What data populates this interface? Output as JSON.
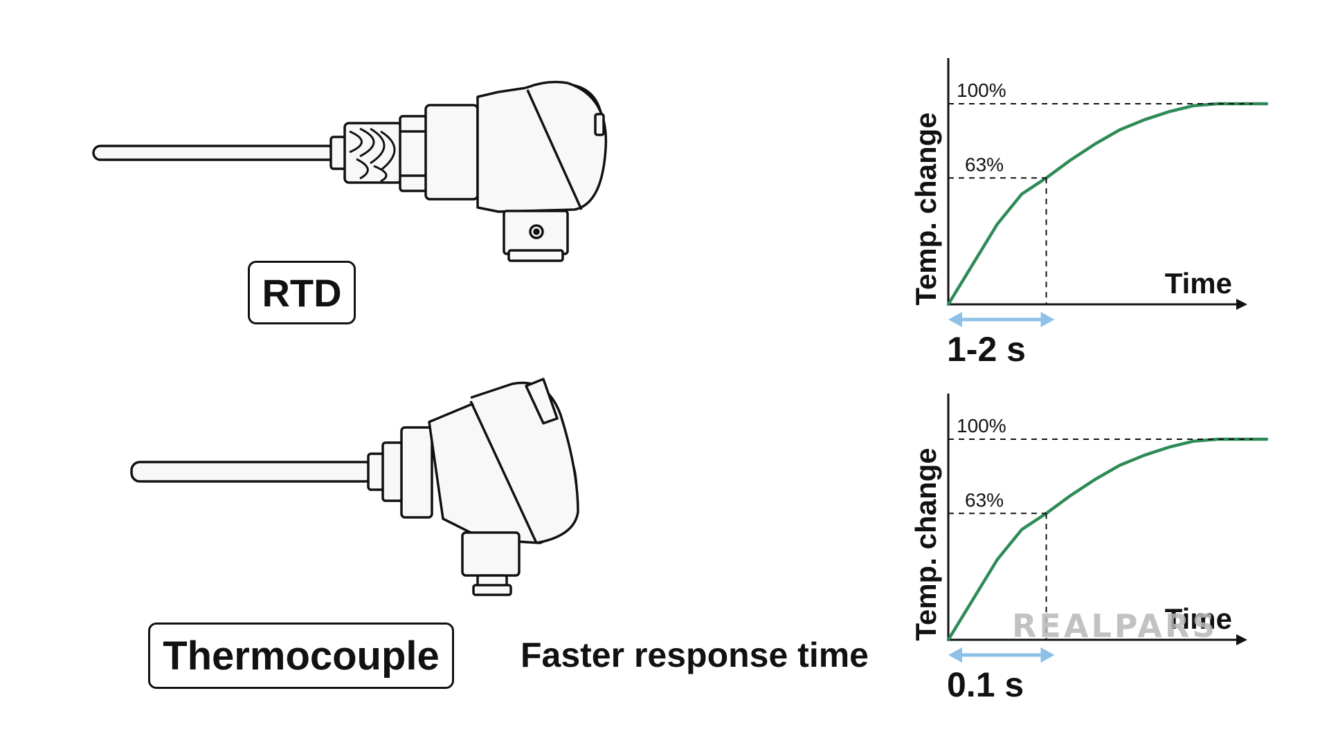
{
  "labels": {
    "rtd": "RTD",
    "thermocouple": "Thermocouple",
    "faster": "Faster response time",
    "watermark": "REALPARS"
  },
  "colors": {
    "curve": "#2e8b57",
    "arrow": "#8ec1e8",
    "line": "#111111"
  },
  "chart_data": [
    {
      "type": "line",
      "title": "",
      "xlabel": "Time",
      "ylabel": "Temp. change",
      "reference_levels": [
        {
          "label": "100%",
          "value": 100
        },
        {
          "label": "63%",
          "value": 63
        }
      ],
      "series": [
        {
          "values": [
            0,
            20,
            40,
            55,
            63,
            72,
            80,
            87,
            92,
            96,
            99,
            100,
            100,
            100
          ]
        }
      ],
      "response_time": "1-2 s",
      "grid": false
    },
    {
      "type": "line",
      "title": "",
      "xlabel": "Time",
      "ylabel": "Temp. change",
      "reference_levels": [
        {
          "label": "100%",
          "value": 100
        },
        {
          "label": "63%",
          "value": 63
        }
      ],
      "series": [
        {
          "values": [
            0,
            20,
            40,
            55,
            63,
            72,
            80,
            87,
            92,
            96,
            99,
            100,
            100,
            100
          ]
        }
      ],
      "response_time": "0.1 s",
      "grid": false
    }
  ]
}
